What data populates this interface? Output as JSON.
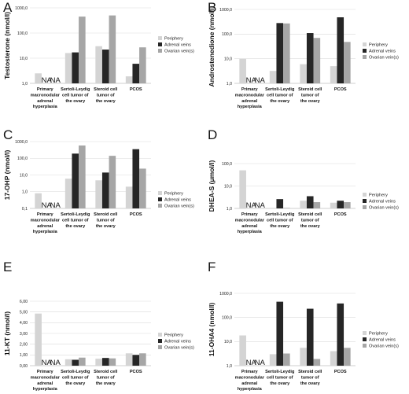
{
  "legend": [
    "Periphery",
    "Adrenal veins",
    "Ovarian vein(s)"
  ],
  "colors": {
    "periphery": "#d4d4d4",
    "adrenal": "#262626",
    "ovarian": "#a6a6a6"
  },
  "na_label": "NA",
  "chart_data": [
    {
      "panel": "A",
      "type": "bar",
      "scale": "log",
      "ylabel": "Testosterone (nmol/l)",
      "yticks": [
        "1,0",
        "10,0",
        "100,0",
        "1000,0"
      ],
      "ylim": [
        1,
        1000
      ],
      "categories": [
        [
          "Primary",
          "macronodular",
          "adrenal",
          "hyperplasia"
        ],
        [
          "Sertoli-Leydig",
          "cell tumor of",
          "the ovary"
        ],
        [
          "Steroid cell",
          "tumor of",
          "the ovary"
        ],
        [
          "PCOS"
        ]
      ],
      "series": [
        {
          "name": "Periphery",
          "values": [
            2.5,
            16,
            30,
            1.9
          ]
        },
        {
          "name": "Adrenal veins",
          "values": [
            null,
            17,
            22,
            6
          ]
        },
        {
          "name": "Ovarian vein(s)",
          "values": [
            null,
            450,
            500,
            27
          ]
        }
      ]
    },
    {
      "panel": "B",
      "type": "bar",
      "scale": "log",
      "ylabel": "Androstenedione (nmol/l)",
      "yticks": [
        "1,0",
        "10,0",
        "100,0",
        "1000,0"
      ],
      "ylim": [
        1,
        1000
      ],
      "categories": [
        [
          "Primary",
          "macronodular",
          "adrenal",
          "hyperplasia"
        ],
        [
          "Sertoli-Leydig",
          "cell tumor of",
          "the ovary"
        ],
        [
          "Steroid cell",
          "tumor of",
          "the ovary"
        ],
        [
          "PCOS"
        ]
      ],
      "series": [
        {
          "name": "Periphery",
          "values": [
            10,
            3.2,
            6,
            5
          ]
        },
        {
          "name": "Adrenal veins",
          "values": [
            null,
            280,
            110,
            480
          ]
        },
        {
          "name": "Ovarian vein(s)",
          "values": [
            null,
            270,
            70,
            48
          ]
        }
      ]
    },
    {
      "panel": "C",
      "type": "bar",
      "scale": "log",
      "ylabel": "17-OHP (nmol/l)",
      "yticks": [
        "0,1",
        "1,0",
        "10,0",
        "100,0",
        "1000,0"
      ],
      "ylim": [
        0.1,
        1000
      ],
      "categories": [
        [
          "Primary",
          "macronodular",
          "adrenal",
          "hyperplasia"
        ],
        [
          "Sertoli-Leydig",
          "cell tumor of",
          "the ovary"
        ],
        [
          "Steroid cell",
          "tumor of",
          "the ovary"
        ],
        [
          "PCOS"
        ]
      ],
      "series": [
        {
          "name": "Periphery",
          "values": [
            0.8,
            6,
            4.8,
            2
          ]
        },
        {
          "name": "Adrenal veins",
          "values": [
            null,
            190,
            14,
            350
          ]
        },
        {
          "name": "Ovarian vein(s)",
          "values": [
            null,
            580,
            140,
            24
          ]
        }
      ]
    },
    {
      "panel": "D",
      "type": "bar",
      "scale": "log",
      "ylabel": "DHEA-S (μmol/l)",
      "yticks": [
        "1,0",
        "10,0",
        "100,0"
      ],
      "ylim": [
        1,
        100
      ],
      "categories": [
        [
          "Primary",
          "macronodular",
          "adrenal",
          "hyperplasia"
        ],
        [
          "Sertoli-Leydig",
          "cell tumor of",
          "the ovary"
        ],
        [
          "Steroid cell",
          "tumor of",
          "the ovary"
        ],
        [
          "PCOS"
        ]
      ],
      "series": [
        {
          "name": "Periphery",
          "values": [
            50,
            1.05,
            2.2,
            1.8
          ]
        },
        {
          "name": "Adrenal veins",
          "values": [
            null,
            2.6,
            3.5,
            2.2
          ]
        },
        {
          "name": "Ovarian vein(s)",
          "values": [
            null,
            1.05,
            1.9,
            1.9
          ]
        }
      ]
    },
    {
      "panel": "E",
      "type": "bar",
      "scale": "linear",
      "ylabel": "11-KT (nmol/l)",
      "yticks": [
        "0,00",
        "1,00",
        "2,00",
        "3,00",
        "4,00",
        "5,00",
        "6,00"
      ],
      "ylim": [
        0,
        6
      ],
      "categories": [
        [
          "Primary",
          "macronodular",
          "adrenal",
          "hyperplasia"
        ],
        [
          "Sertoli-Leydig",
          "cell tumor of",
          "the ovary"
        ],
        [
          "Steroid cell",
          "tumor of",
          "the ovary"
        ],
        [
          "PCOS"
        ]
      ],
      "series": [
        {
          "name": "Periphery",
          "values": [
            4.85,
            0.6,
            0.65,
            1.15
          ]
        },
        {
          "name": "Adrenal veins",
          "values": [
            null,
            0.55,
            0.72,
            1.0
          ]
        },
        {
          "name": "Ovarian vein(s)",
          "values": [
            null,
            0.75,
            0.68,
            1.15
          ]
        }
      ]
    },
    {
      "panel": "F",
      "type": "bar",
      "scale": "log",
      "ylabel": "11-OHA4 (nmol/l)",
      "yticks": [
        "1,0",
        "10,0",
        "100,0",
        "1000,0"
      ],
      "ylim": [
        1,
        1000
      ],
      "categories": [
        [
          "Primary",
          "macronodular",
          "adrenal",
          "hyperplasia"
        ],
        [
          "Sertoli-Leydig",
          "cell tumor of",
          "the ovary"
        ],
        [
          "Steroid cell",
          "tumor of",
          "the ovary"
        ],
        [
          "PCOS"
        ]
      ],
      "series": [
        {
          "name": "Periphery",
          "values": [
            18,
            3,
            5.5,
            4
          ]
        },
        {
          "name": "Adrenal veins",
          "values": [
            null,
            450,
            230,
            380
          ]
        },
        {
          "name": "Ovarian vein(s)",
          "values": [
            null,
            3.2,
            1.9,
            5.5
          ]
        }
      ]
    }
  ]
}
